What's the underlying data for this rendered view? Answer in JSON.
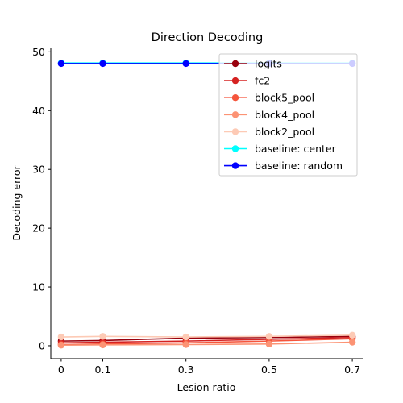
{
  "chart_data": {
    "type": "line",
    "title": "Direction Decoding",
    "xlabel": "Lesion ratio",
    "ylabel": "Decoding error",
    "x": [
      0,
      0.1,
      0.3,
      0.5,
      0.7
    ],
    "x_tick_labels": [
      "0",
      "0.1",
      "0.3",
      "0.5",
      "0.7"
    ],
    "xlim": [
      -0.025,
      0.725
    ],
    "ylim": [
      -2.2,
      50.6
    ],
    "y_ticks": [
      0,
      10,
      20,
      30,
      40,
      50
    ],
    "grid": false,
    "legend_position": "upper right",
    "series": [
      {
        "name": "logits",
        "color": "#99000d",
        "values": [
          0.8,
          0.9,
          1.3,
          1.4,
          1.6
        ]
      },
      {
        "name": "fc2",
        "color": "#d52221",
        "values": [
          0.5,
          0.6,
          0.8,
          1.1,
          1.4
        ]
      },
      {
        "name": "block5_pool",
        "color": "#f5553c",
        "values": [
          0.2,
          0.3,
          0.5,
          0.8,
          1.2
        ]
      },
      {
        "name": "block4_pool",
        "color": "#fc9374",
        "values": [
          0.1,
          0.15,
          0.2,
          0.3,
          0.6
        ]
      },
      {
        "name": "block2_pool",
        "color": "#fdcab5",
        "values": [
          1.5,
          1.6,
          1.5,
          1.6,
          1.8
        ]
      },
      {
        "name": "baseline: center",
        "color": "#00ffff",
        "values": [
          48.1,
          48.1,
          48.1,
          48.1,
          48.1
        ]
      },
      {
        "name": "baseline: random",
        "color": "#0000ff",
        "values": [
          48.0,
          48.0,
          48.0,
          48.0,
          48.0
        ]
      }
    ]
  }
}
